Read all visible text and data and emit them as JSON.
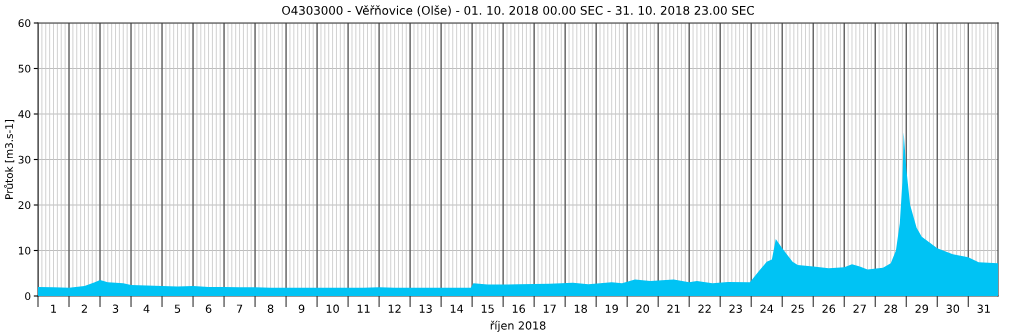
{
  "chart_data": {
    "type": "area",
    "title": "O4303000 - Věřňovice (Olše) - 01. 10. 2018 00.00 SEC - 31. 10. 2018 23.00 SEC",
    "xlabel": "říjen 2018",
    "ylabel": "Průtok [m3.s-1]",
    "x": [
      "2018-10-01T00:00",
      "2018-10-01T12:00",
      "2018-10-02T00:00",
      "2018-10-02T12:00",
      "2018-10-02T20:00",
      "2018-10-03T00:00",
      "2018-10-03T06:00",
      "2018-10-03T18:00",
      "2018-10-04T00:00",
      "2018-10-04T12:00",
      "2018-10-05T00:00",
      "2018-10-05T12:00",
      "2018-10-06T00:00",
      "2018-10-06T12:00",
      "2018-10-07T00:00",
      "2018-10-07T12:00",
      "2018-10-08T00:00",
      "2018-10-08T12:00",
      "2018-10-09T12:00",
      "2018-10-10T12:00",
      "2018-10-11T12:00",
      "2018-10-12T00:00",
      "2018-10-12T12:00",
      "2018-10-13T12:00",
      "2018-10-14T12:00",
      "2018-10-14T23:00",
      "2018-10-15T01:00",
      "2018-10-15T12:00",
      "2018-10-16T00:00",
      "2018-10-16T12:00",
      "2018-10-17T12:00",
      "2018-10-18T06:00",
      "2018-10-18T18:00",
      "2018-10-19T12:00",
      "2018-10-19T20:00",
      "2018-10-20T06:00",
      "2018-10-20T18:00",
      "2018-10-21T12:00",
      "2018-10-22T00:00",
      "2018-10-22T06:00",
      "2018-10-22T18:00",
      "2018-10-23T06:00",
      "2018-10-23T23:00",
      "2018-10-24T06:00",
      "2018-10-24T12:00",
      "2018-10-24T16:00",
      "2018-10-24T19:00",
      "2018-10-25T00:00",
      "2018-10-25T08:00",
      "2018-10-25T12:00",
      "2018-10-26T00:00",
      "2018-10-26T12:00",
      "2018-10-27T00:00",
      "2018-10-27T06:00",
      "2018-10-27T12:00",
      "2018-10-27T18:00",
      "2018-10-28T06:00",
      "2018-10-28T12:00",
      "2018-10-28T16:00",
      "2018-10-28T19:00",
      "2018-10-28T21:00",
      "2018-10-28T22:00",
      "2018-10-29T00:00",
      "2018-10-29T03:00",
      "2018-10-29T08:00",
      "2018-10-29T12:00",
      "2018-10-30T00:00",
      "2018-10-30T12:00",
      "2018-10-31T00:00",
      "2018-10-31T08:00",
      "2018-10-31T23:00"
    ],
    "series": [
      {
        "color": "#00c3f4",
        "values": [
          2.0,
          1.9,
          1.8,
          2.2,
          3.0,
          3.5,
          3.0,
          2.8,
          2.4,
          2.3,
          2.2,
          2.1,
          2.2,
          2.0,
          2.0,
          1.9,
          1.9,
          1.8,
          1.8,
          1.8,
          1.8,
          1.9,
          1.8,
          1.8,
          1.8,
          1.8,
          2.8,
          2.5,
          2.5,
          2.6,
          2.7,
          2.9,
          2.6,
          3.0,
          2.8,
          3.6,
          3.3,
          3.6,
          3.0,
          3.3,
          2.8,
          3.1,
          3.0,
          5.5,
          7.5,
          8.0,
          12.5,
          10.5,
          7.5,
          6.8,
          6.5,
          6.1,
          6.3,
          7.0,
          6.5,
          5.8,
          6.2,
          7.2,
          10.0,
          16,
          25,
          36,
          28,
          20,
          15,
          13,
          10.5,
          9.2,
          8.5,
          7.4,
          7.2
        ]
      }
    ],
    "xlim": [
      "2018-10-01T00:00",
      "2018-10-31T23:00"
    ],
    "xticks": [
      {
        "value": "2018-10-01T00:00",
        "label": null
      },
      {
        "value": "2018-10-01T12:00",
        "label": "1"
      },
      {
        "value": "2018-10-02T00:00",
        "label": null
      },
      {
        "value": "2018-10-02T12:00",
        "label": "2"
      },
      {
        "value": "2018-10-03T00:00",
        "label": null
      },
      {
        "value": "2018-10-03T12:00",
        "label": "3"
      },
      {
        "value": "2018-10-04T00:00",
        "label": null
      },
      {
        "value": "2018-10-04T12:00",
        "label": "4"
      },
      {
        "value": "2018-10-05T00:00",
        "label": null
      },
      {
        "value": "2018-10-05T12:00",
        "label": "5"
      },
      {
        "value": "2018-10-06T00:00",
        "label": null
      },
      {
        "value": "2018-10-06T12:00",
        "label": "6"
      },
      {
        "value": "2018-10-07T00:00",
        "label": null
      },
      {
        "value": "2018-10-07T12:00",
        "label": "7"
      },
      {
        "value": "2018-10-08T00:00",
        "label": null
      },
      {
        "value": "2018-10-08T12:00",
        "label": "8"
      },
      {
        "value": "2018-10-09T00:00",
        "label": null
      },
      {
        "value": "2018-10-09T12:00",
        "label": "9"
      },
      {
        "value": "2018-10-10T00:00",
        "label": null
      },
      {
        "value": "2018-10-10T12:00",
        "label": "10"
      },
      {
        "value": "2018-10-11T00:00",
        "label": null
      },
      {
        "value": "2018-10-11T12:00",
        "label": "11"
      },
      {
        "value": "2018-10-12T00:00",
        "label": null
      },
      {
        "value": "2018-10-12T12:00",
        "label": "12"
      },
      {
        "value": "2018-10-13T00:00",
        "label": null
      },
      {
        "value": "2018-10-13T12:00",
        "label": "13"
      },
      {
        "value": "2018-10-14T00:00",
        "label": null
      },
      {
        "value": "2018-10-14T12:00",
        "label": "14"
      },
      {
        "value": "2018-10-15T00:00",
        "label": null
      },
      {
        "value": "2018-10-15T12:00",
        "label": "15"
      },
      {
        "value": "2018-10-16T00:00",
        "label": null
      },
      {
        "value": "2018-10-16T12:00",
        "label": "16"
      },
      {
        "value": "2018-10-17T00:00",
        "label": null
      },
      {
        "value": "2018-10-17T12:00",
        "label": "17"
      },
      {
        "value": "2018-10-18T00:00",
        "label": null
      },
      {
        "value": "2018-10-18T12:00",
        "label": "18"
      },
      {
        "value": "2018-10-19T00:00",
        "label": null
      },
      {
        "value": "2018-10-19T12:00",
        "label": "19"
      },
      {
        "value": "2018-10-20T00:00",
        "label": null
      },
      {
        "value": "2018-10-20T12:00",
        "label": "20"
      },
      {
        "value": "2018-10-21T00:00",
        "label": null
      },
      {
        "value": "2018-10-21T12:00",
        "label": "21"
      },
      {
        "value": "2018-10-22T00:00",
        "label": null
      },
      {
        "value": "2018-10-22T12:00",
        "label": "22"
      },
      {
        "value": "2018-10-23T00:00",
        "label": null
      },
      {
        "value": "2018-10-23T12:00",
        "label": "23"
      },
      {
        "value": "2018-10-24T00:00",
        "label": null
      },
      {
        "value": "2018-10-24T12:00",
        "label": "24"
      },
      {
        "value": "2018-10-25T00:00",
        "label": null
      },
      {
        "value": "2018-10-25T12:00",
        "label": "25"
      },
      {
        "value": "2018-10-26T00:00",
        "label": null
      },
      {
        "value": "2018-10-26T12:00",
        "label": "26"
      },
      {
        "value": "2018-10-27T00:00",
        "label": null
      },
      {
        "value": "2018-10-27T12:00",
        "label": "27"
      },
      {
        "value": "2018-10-28T00:00",
        "label": null
      },
      {
        "value": "2018-10-28T12:00",
        "label": "28"
      },
      {
        "value": "2018-10-29T00:00",
        "label": null
      },
      {
        "value": "2018-10-29T12:00",
        "label": "29"
      },
      {
        "value": "2018-10-30T00:00",
        "label": null
      },
      {
        "value": "2018-10-30T12:00",
        "label": "30"
      },
      {
        "value": "2018-10-31T00:00",
        "label": null
      },
      {
        "value": "2018-10-31T12:00",
        "label": "31"
      }
    ],
    "ylim": [
      0,
      60
    ],
    "yticks": [
      0,
      10,
      20,
      30,
      40,
      50,
      60
    ],
    "grid": true
  }
}
